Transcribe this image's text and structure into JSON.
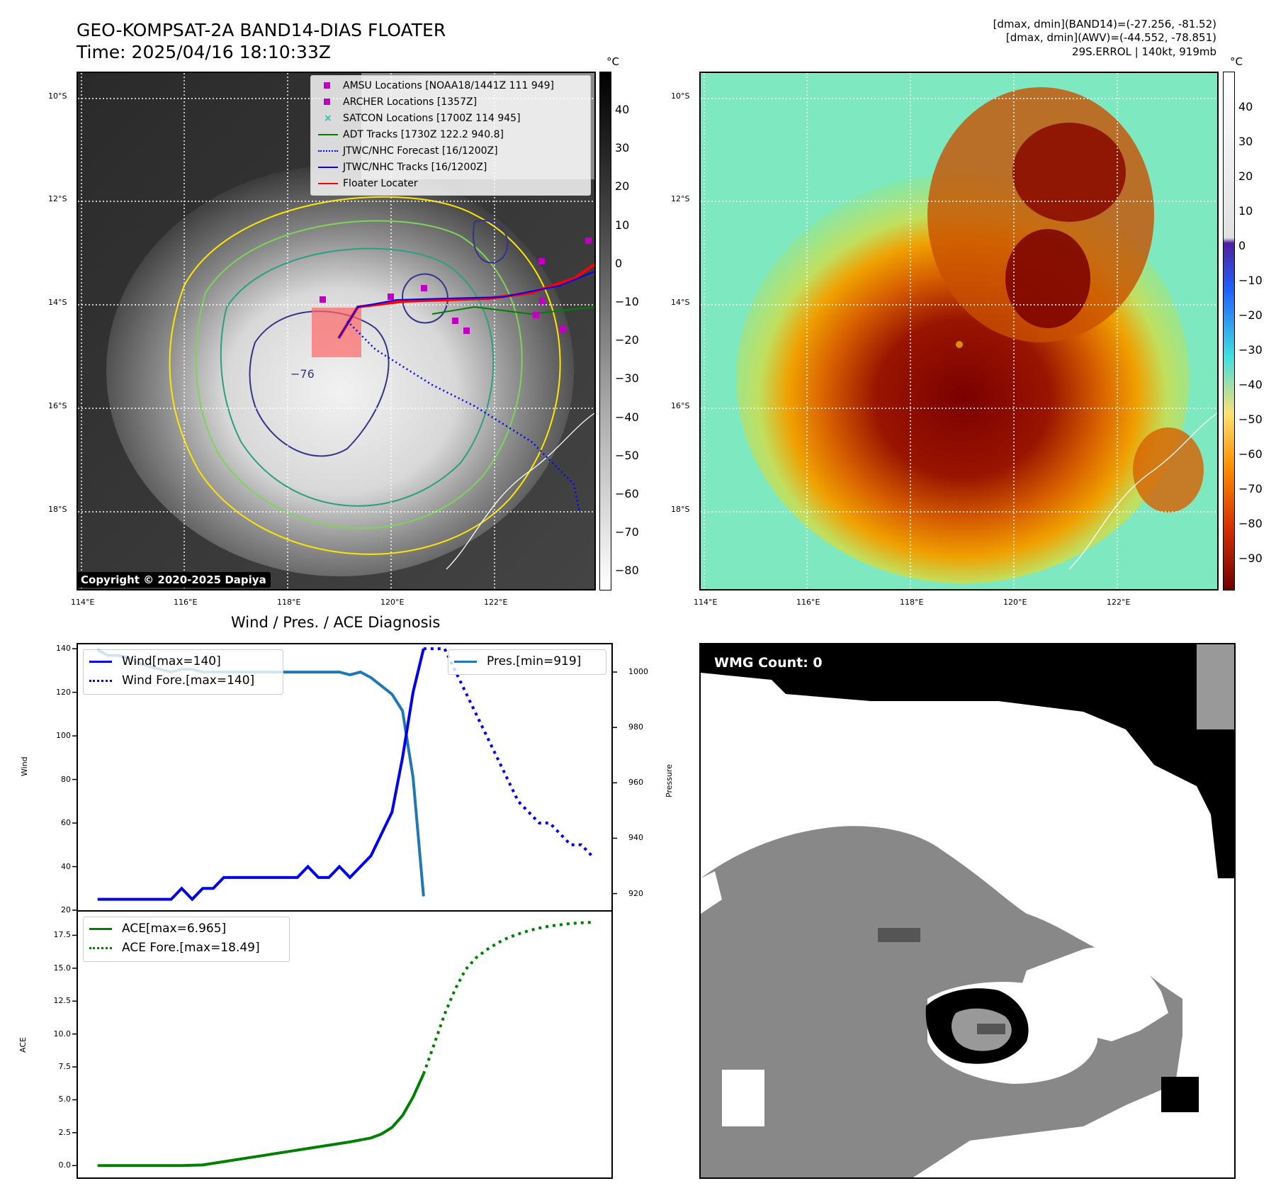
{
  "header": {
    "title": "GEO-KOMPSAT-2A BAND14-DIAS FLOATER",
    "time": "Time: 2025/04/16 18:10:33Z",
    "stat1": "[dmax, dmin](BAND14)=(-27.256, -81.52)",
    "stat2": "[dmax, dmin](AWV)=(-44.552, -78.851)",
    "storm": "29S.ERROL | 140kt, 919mb"
  },
  "map": {
    "lat_ticks": [
      "10°S",
      "12°S",
      "14°S",
      "16°S",
      "18°S"
    ],
    "lon_ticks": [
      "114°E",
      "116°E",
      "118°E",
      "120°E",
      "122°E"
    ],
    "contour_label": "−76",
    "copyright": "Copyright © 2020-2025 Dapiya",
    "colorbar_unit": "°C",
    "colorbar_ticks_ir": [
      "40",
      "30",
      "20",
      "10",
      "0",
      "−10",
      "−20",
      "−30",
      "−40",
      "−50",
      "−60",
      "−70",
      "−80"
    ],
    "colorbar_ticks_color": [
      "40",
      "30",
      "20",
      "10",
      "0",
      "−10",
      "−20",
      "−30",
      "−40",
      "−50",
      "−60",
      "−70",
      "−80",
      "−90"
    ],
    "legend": [
      {
        "label": "AMSU Locations [NOAA18/1441Z 111 949]",
        "marker": "square",
        "color": "#c000c0"
      },
      {
        "label": "ARCHER Locations [1357Z]",
        "marker": "square",
        "color": "#c000c0"
      },
      {
        "label": "SATCON Locations [1700Z 114 945]",
        "marker": "x",
        "color": "#20c0c0"
      },
      {
        "label": "ADT Tracks [1730Z 122.2 940.8]",
        "marker": "line",
        "color": "#008000"
      },
      {
        "label": "JTWC/NHC Forecast [16/1200Z]",
        "marker": "dotted",
        "color": "#0000ff"
      },
      {
        "label": "JTWC/NHC Tracks [16/1200Z]",
        "marker": "line-dot",
        "color": "#0000ff"
      },
      {
        "label": "Floater Locater",
        "marker": "line",
        "color": "#ff0000"
      }
    ]
  },
  "diag": {
    "title": "Wind / Pres. / ACE Diagnosis",
    "wind_ylabel": "Wind",
    "pres_ylabel": "Pressure",
    "ace_ylabel": "ACE",
    "wind_legend": [
      "Wind[max=140]",
      "Wind Fore.[max=140]"
    ],
    "pres_legend": [
      "Pres.[min=919]"
    ],
    "ace_legend": [
      "ACE[max=6.965]",
      "ACE Fore.[max=18.49]"
    ],
    "colors": {
      "wind": "#0000ee",
      "pres": "#1f77b4",
      "ace": "#008000"
    }
  },
  "wmg": {
    "label": "WMG Count: 0"
  },
  "chart_data": [
    {
      "type": "line",
      "panel": "wind",
      "ylim": [
        20,
        142
      ],
      "yticks": [
        20,
        40,
        60,
        80,
        100,
        120,
        140
      ],
      "series": [
        {
          "name": "Wind[max=140]",
          "x": [
            0,
            1,
            2,
            3,
            4,
            5,
            6,
            7,
            8,
            9,
            10,
            11,
            12,
            13,
            14,
            15,
            16,
            17,
            18,
            19,
            20,
            21,
            22,
            23,
            24,
            25,
            26,
            27,
            28,
            29,
            30,
            31
          ],
          "values": [
            25,
            25,
            25,
            25,
            25,
            25,
            25,
            25,
            30,
            25,
            30,
            30,
            35,
            35,
            35,
            35,
            35,
            35,
            35,
            35,
            40,
            35,
            35,
            40,
            35,
            40,
            45,
            55,
            65,
            90,
            120,
            140
          ]
        },
        {
          "name": "Wind Fore.[max=140]",
          "x": [
            31,
            32,
            33,
            34,
            35,
            36,
            37,
            38,
            39,
            40,
            41,
            42,
            43,
            44,
            45,
            46,
            47
          ],
          "values": [
            140,
            140,
            140,
            130,
            120,
            110,
            100,
            90,
            80,
            70,
            65,
            60,
            60,
            55,
            50,
            50,
            45
          ]
        }
      ]
    },
    {
      "type": "line",
      "panel": "pressure",
      "ylim": [
        914,
        1010
      ],
      "yticks": [
        920,
        940,
        960,
        980,
        1000
      ],
      "series": [
        {
          "name": "Pres.[min=919]",
          "x": [
            0,
            1,
            2,
            3,
            4,
            5,
            6,
            7,
            8,
            9,
            10,
            11,
            12,
            13,
            14,
            15,
            16,
            17,
            18,
            19,
            20,
            21,
            22,
            23,
            24,
            25,
            26,
            27,
            28,
            29,
            30,
            31
          ],
          "values": [
            1008,
            1006,
            1006,
            1005,
            1003,
            1002,
            1001,
            1000,
            1001,
            1001,
            1000,
            1000,
            1000,
            1000,
            1000,
            1000,
            1000,
            1000,
            1000,
            1000,
            1000,
            1000,
            1000,
            1000,
            999,
            1000,
            998,
            995,
            992,
            986,
            962,
            919
          ]
        }
      ]
    },
    {
      "type": "line",
      "panel": "ace",
      "ylim": [
        -0.9,
        19.3
      ],
      "yticks": [
        0.0,
        2.5,
        5.0,
        7.5,
        10.0,
        12.5,
        15.0,
        17.5
      ],
      "ytick_labels": [
        "0.0",
        "2.5",
        "5.0",
        "7.5",
        "10.0",
        "12.5",
        "15.0",
        "17.5"
      ],
      "series": [
        {
          "name": "ACE[max=6.965]",
          "x": [
            0,
            2,
            4,
            6,
            8,
            10,
            12,
            14,
            16,
            18,
            20,
            22,
            24,
            26,
            27,
            28,
            29,
            30,
            31
          ],
          "values": [
            0,
            0,
            0,
            0,
            0,
            0.05,
            0.3,
            0.55,
            0.8,
            1.05,
            1.3,
            1.55,
            1.8,
            2.1,
            2.4,
            2.9,
            3.8,
            5.2,
            6.965
          ]
        },
        {
          "name": "ACE Fore.[max=18.49]",
          "x": [
            31,
            32,
            33,
            34,
            35,
            36,
            37,
            38,
            39,
            40,
            41,
            42,
            43,
            44,
            45,
            46,
            47
          ],
          "values": [
            6.965,
            9.2,
            11.5,
            13.4,
            14.9,
            15.8,
            16.4,
            16.9,
            17.3,
            17.6,
            17.85,
            18.05,
            18.2,
            18.3,
            18.4,
            18.45,
            18.49
          ]
        }
      ]
    }
  ]
}
